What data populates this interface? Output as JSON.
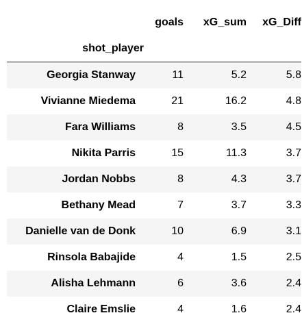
{
  "table": {
    "columns": [
      "goals",
      "xG_sum",
      "xG_Diff"
    ],
    "index_name": "shot_player",
    "rows": [
      {
        "shot_player": "Georgia Stanway",
        "goals": "11",
        "xG_sum": "5.2",
        "xG_Diff": "5.8"
      },
      {
        "shot_player": "Vivianne Miedema",
        "goals": "21",
        "xG_sum": "16.2",
        "xG_Diff": "4.8"
      },
      {
        "shot_player": "Fara Williams",
        "goals": "8",
        "xG_sum": "3.5",
        "xG_Diff": "4.5"
      },
      {
        "shot_player": "Nikita Parris",
        "goals": "15",
        "xG_sum": "11.3",
        "xG_Diff": "3.7"
      },
      {
        "shot_player": "Jordan Nobbs",
        "goals": "8",
        "xG_sum": "4.3",
        "xG_Diff": "3.7"
      },
      {
        "shot_player": "Bethany Mead",
        "goals": "7",
        "xG_sum": "3.7",
        "xG_Diff": "3.3"
      },
      {
        "shot_player": "Danielle van de Donk",
        "goals": "10",
        "xG_sum": "6.9",
        "xG_Diff": "3.1"
      },
      {
        "shot_player": "Rinsola Babajide",
        "goals": "4",
        "xG_sum": "1.5",
        "xG_Diff": "2.5"
      },
      {
        "shot_player": "Alisha Lehmann",
        "goals": "6",
        "xG_sum": "3.6",
        "xG_Diff": "2.4"
      },
      {
        "shot_player": "Claire Emslie",
        "goals": "4",
        "xG_sum": "1.6",
        "xG_Diff": "2.4"
      }
    ]
  }
}
